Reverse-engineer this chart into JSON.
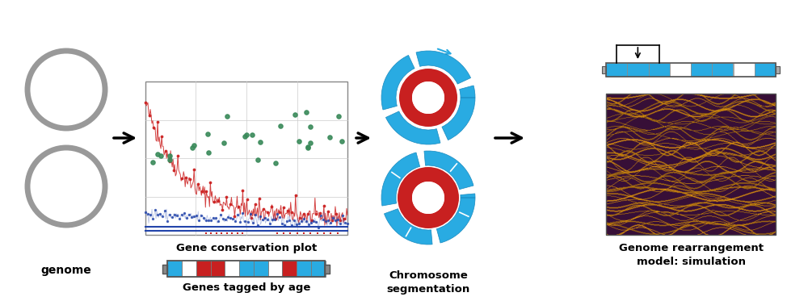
{
  "bg_color": "#ffffff",
  "gray_circle_color": "#999999",
  "gray_circle_lw": 5,
  "blue_color": "#29ABE2",
  "red_color": "#C82020",
  "white_color": "#ffffff",
  "green_dot_color": "#4a9a6a",
  "plot_border_color": "#aaaaaa",
  "genome_label": "genome",
  "label1": "Gene conservation plot",
  "label2": "Genes tagged by age",
  "label3": "Chromosome\nsegmentation",
  "label4": "Genome rearrangement\nmodel: simulation",
  "label_fontsize": 9.5,
  "genome_label_fontsize": 10
}
